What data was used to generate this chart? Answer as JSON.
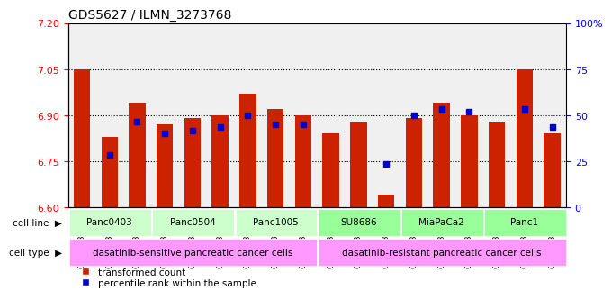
{
  "title": "GDS5627 / ILMN_3273768",
  "samples": [
    "GSM1435684",
    "GSM1435685",
    "GSM1435686",
    "GSM1435687",
    "GSM1435688",
    "GSM1435689",
    "GSM1435690",
    "GSM1435691",
    "GSM1435692",
    "GSM1435693",
    "GSM1435694",
    "GSM1435695",
    "GSM1435696",
    "GSM1435697",
    "GSM1435698",
    "GSM1435699",
    "GSM1435700",
    "GSM1435701"
  ],
  "bar_values": [
    7.05,
    6.83,
    6.94,
    6.87,
    6.89,
    6.9,
    6.97,
    6.92,
    6.9,
    6.84,
    6.88,
    6.64,
    6.89,
    6.94,
    6.9,
    6.88,
    7.05,
    6.84
  ],
  "dot_values": [
    null,
    6.77,
    6.88,
    6.84,
    6.85,
    6.86,
    6.9,
    6.87,
    6.87,
    null,
    null,
    6.74,
    6.9,
    6.92,
    6.91,
    null,
    6.92,
    6.86
  ],
  "ylim_left": [
    6.6,
    7.2
  ],
  "yticks_left": [
    6.6,
    6.75,
    6.9,
    7.05,
    7.2
  ],
  "ylim_right": [
    0,
    100
  ],
  "yticks_right": [
    0,
    25,
    50,
    75,
    100
  ],
  "bar_color": "#cc2200",
  "dot_color": "#0000cc",
  "cell_lines": [
    {
      "label": "Panc0403",
      "start": 0,
      "end": 2,
      "color": "#ccffcc"
    },
    {
      "label": "Panc0504",
      "start": 3,
      "end": 5,
      "color": "#ccffcc"
    },
    {
      "label": "Panc1005",
      "start": 6,
      "end": 8,
      "color": "#ccffcc"
    },
    {
      "label": "SU8686",
      "start": 9,
      "end": 11,
      "color": "#99ff99"
    },
    {
      "label": "MiaPaCa2",
      "start": 12,
      "end": 14,
      "color": "#99ff99"
    },
    {
      "label": "Panc1",
      "start": 15,
      "end": 17,
      "color": "#99ff99"
    }
  ],
  "cell_types": [
    {
      "label": "dasatinib-sensitive pancreatic cancer cells",
      "start": 0,
      "end": 8,
      "color": "#ff99ff"
    },
    {
      "label": "dasatinib-resistant pancreatic cancer cells",
      "start": 9,
      "end": 17,
      "color": "#ff99ff"
    }
  ],
  "row_labels": [
    "cell line",
    "cell type"
  ],
  "legend_items": [
    {
      "label": "transformed count",
      "color": "#cc2200",
      "marker": "s"
    },
    {
      "label": "percentile rank within the sample",
      "color": "#0000cc",
      "marker": "s"
    }
  ],
  "grid_color": "black",
  "bg_color": "white",
  "axis_bg": "#e8e8e8",
  "bar_width": 0.6
}
